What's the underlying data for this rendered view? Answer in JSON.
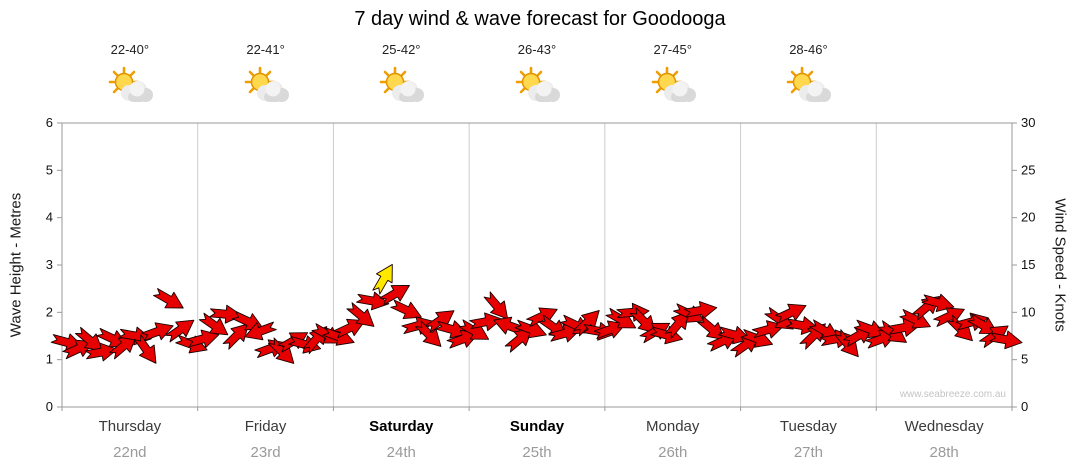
{
  "title": "7 day wind & wave forecast for Goodooga",
  "watermark": "www.seabreeze.com.au",
  "header": {
    "temps": [
      "22-40°",
      "22-41°",
      "25-42°",
      "26-43°",
      "27-45°",
      "28-46°"
    ],
    "icon": "sun-behind-cloud"
  },
  "axes": {
    "left": {
      "label": "Wave Height - Metres",
      "ticks": [
        0,
        1,
        2,
        3,
        4,
        5,
        6
      ],
      "range": [
        0,
        6
      ]
    },
    "right": {
      "label": "Wind Speed - Knots",
      "ticks": [
        0,
        5,
        10,
        15,
        20,
        25,
        30
      ],
      "range": [
        0,
        30
      ]
    },
    "x": {
      "days": [
        {
          "name": "Thursday",
          "date": "22nd",
          "bold": false
        },
        {
          "name": "Friday",
          "date": "23rd",
          "bold": false
        },
        {
          "name": "Saturday",
          "date": "24th",
          "bold": true
        },
        {
          "name": "Sunday",
          "date": "25th",
          "bold": true
        },
        {
          "name": "Monday",
          "date": "26th",
          "bold": false
        },
        {
          "name": "Tuesday",
          "date": "27th",
          "bold": false
        },
        {
          "name": "Wednesday",
          "date": "28th",
          "bold": false
        }
      ]
    }
  },
  "colors": {
    "arrow": "#e60000",
    "arrow_outline": "#1a0000",
    "highlight": "#ffe800",
    "grid": "#cccccc",
    "axis": "#9a9a9a",
    "tick_text": "#111111"
  },
  "chart_data": {
    "type": "scatter",
    "title": "7 day wind & wave forecast for Goodooga",
    "x_unit": "hours_from_start",
    "x_range": [
      0,
      168
    ],
    "y_unit": "knots",
    "ylim": [
      0,
      30
    ],
    "secondary_axis": {
      "label": "Wave Height - Metres",
      "ylim": [
        0,
        6
      ]
    },
    "legend": "none",
    "grid": "vertical-day-boundaries",
    "point_format": "[hour, wind_speed_knots, arrow_direction_deg, optional 'Y'=yellow-highlight]",
    "points": [
      [
        1,
        6.8,
        15
      ],
      [
        3,
        6.2,
        -25
      ],
      [
        5,
        7.0,
        40
      ],
      [
        7,
        5.8,
        -10
      ],
      [
        9,
        7.2,
        25
      ],
      [
        11,
        6.5,
        -40
      ],
      [
        13,
        7.5,
        10
      ],
      [
        15,
        6.0,
        55
      ],
      [
        17,
        8.0,
        -20
      ],
      [
        19,
        11.3,
        30
      ],
      [
        21,
        8.2,
        -35
      ],
      [
        23,
        6.6,
        20
      ],
      [
        25,
        7.2,
        -15
      ],
      [
        27,
        8.6,
        35
      ],
      [
        29,
        9.8,
        5
      ],
      [
        31,
        7.6,
        -45
      ],
      [
        33,
        9.0,
        25
      ],
      [
        35,
        8.0,
        160
      ],
      [
        37,
        6.2,
        -20
      ],
      [
        39,
        5.8,
        45
      ],
      [
        41,
        7.0,
        -30
      ],
      [
        43,
        6.6,
        15
      ],
      [
        45,
        7.2,
        -50
      ],
      [
        47,
        7.6,
        30
      ],
      [
        49,
        7.4,
        20
      ],
      [
        51,
        8.4,
        -25
      ],
      [
        53,
        9.6,
        40
      ],
      [
        55,
        11.2,
        10
      ],
      [
        57,
        13.6,
        -60,
        "Y"
      ],
      [
        59,
        12.0,
        -30
      ],
      [
        61,
        10.2,
        25
      ],
      [
        63,
        8.6,
        -15
      ],
      [
        65,
        7.6,
        45
      ],
      [
        67,
        9.2,
        -35
      ],
      [
        69,
        8.2,
        15
      ],
      [
        71,
        7.2,
        -20
      ],
      [
        73,
        8.0,
        30
      ],
      [
        75,
        9.0,
        -10
      ],
      [
        77,
        10.6,
        50
      ],
      [
        79,
        8.6,
        200
      ],
      [
        81,
        7.2,
        -40
      ],
      [
        83,
        8.2,
        20
      ],
      [
        85,
        9.6,
        -25
      ],
      [
        87,
        8.4,
        35
      ],
      [
        89,
        7.8,
        -15
      ],
      [
        91,
        8.6,
        25
      ],
      [
        93,
        9.0,
        -45
      ],
      [
        95,
        8.0,
        10
      ],
      [
        97,
        8.2,
        -20
      ],
      [
        99,
        9.2,
        30
      ],
      [
        101,
        10.0,
        -5
      ],
      [
        103,
        9.0,
        45
      ],
      [
        105,
        8.0,
        -30
      ],
      [
        107,
        7.6,
        15
      ],
      [
        109,
        8.8,
        -50
      ],
      [
        111,
        9.8,
        25
      ],
      [
        113,
        10.2,
        -10
      ],
      [
        115,
        8.2,
        40
      ],
      [
        117,
        7.0,
        -25
      ],
      [
        119,
        7.6,
        15
      ],
      [
        121,
        6.6,
        -35
      ],
      [
        123,
        7.2,
        20
      ],
      [
        125,
        8.2,
        -15
      ],
      [
        127,
        9.2,
        35
      ],
      [
        129,
        10.0,
        -25
      ],
      [
        131,
        8.6,
        10
      ],
      [
        133,
        7.6,
        -45
      ],
      [
        135,
        8.0,
        30
      ],
      [
        137,
        7.2,
        -10
      ],
      [
        139,
        6.6,
        50
      ],
      [
        141,
        7.6,
        -30
      ],
      [
        143,
        8.2,
        20
      ],
      [
        145,
        7.2,
        -20
      ],
      [
        147,
        7.8,
        35
      ],
      [
        149,
        8.4,
        -10
      ],
      [
        151,
        9.2,
        25
      ],
      [
        153,
        10.6,
        -40
      ],
      [
        155,
        11.0,
        15
      ],
      [
        157,
        9.6,
        -25
      ],
      [
        159,
        8.2,
        45
      ],
      [
        161,
        9.0,
        -15
      ],
      [
        163,
        8.6,
        30
      ],
      [
        165,
        7.6,
        -35
      ],
      [
        167,
        7.1,
        10
      ]
    ]
  }
}
